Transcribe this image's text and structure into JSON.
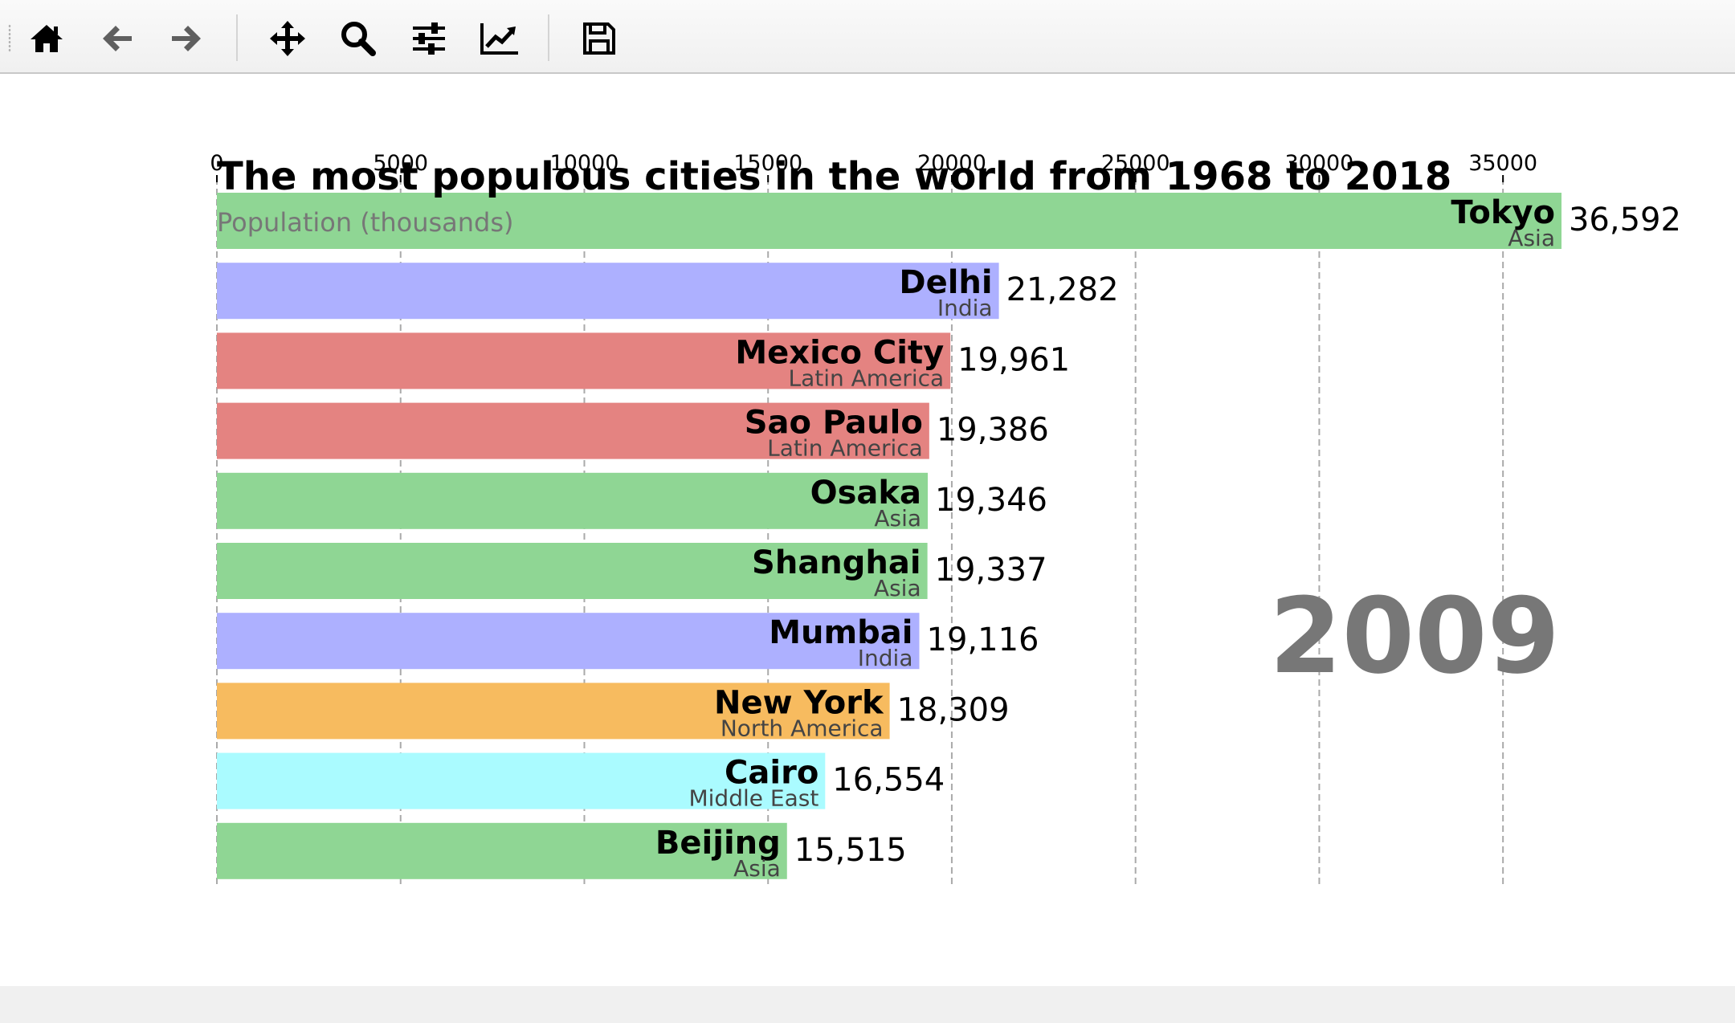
{
  "toolbar": {
    "buttons": [
      {
        "id": "home",
        "icon": "home-icon"
      },
      {
        "id": "back",
        "icon": "arrow-left-icon"
      },
      {
        "id": "forward",
        "icon": "arrow-right-icon"
      },
      {
        "id": "pan",
        "icon": "move-icon"
      },
      {
        "id": "zoom",
        "icon": "search-icon"
      },
      {
        "id": "configure",
        "icon": "sliders-icon"
      },
      {
        "id": "edit-axis",
        "icon": "chart-line-icon"
      },
      {
        "id": "save",
        "icon": "save-icon"
      }
    ]
  },
  "chart_data": {
    "type": "bar",
    "orientation": "horizontal",
    "title": "The most populous cities in the world from 1968 to 2018",
    "xlabel": "Population (thousands)",
    "xlim": [
      0,
      40000
    ],
    "xticks": [
      0,
      5000,
      10000,
      15000,
      20000,
      25000,
      30000,
      35000
    ],
    "xtick_labels": [
      "0",
      "5000",
      "10000",
      "15000",
      "20000",
      "25000",
      "30000",
      "35000"
    ],
    "grid": "vertical dashed",
    "year_label": "2009",
    "bars": [
      {
        "name": "Tokyo",
        "group": "Asia",
        "value": 36592,
        "value_label": "36,592",
        "color": "#8fd694"
      },
      {
        "name": "Delhi",
        "group": "India",
        "value": 21282,
        "value_label": "21,282",
        "color": "#adb0ff"
      },
      {
        "name": "Mexico City",
        "group": "Latin America",
        "value": 19961,
        "value_label": "19,961",
        "color": "#e48381"
      },
      {
        "name": "Sao Paulo",
        "group": "Latin America",
        "value": 19386,
        "value_label": "19,386",
        "color": "#e48381"
      },
      {
        "name": "Osaka",
        "group": "Asia",
        "value": 19346,
        "value_label": "19,346",
        "color": "#8fd694"
      },
      {
        "name": "Shanghai",
        "group": "Asia",
        "value": 19337,
        "value_label": "19,337",
        "color": "#8fd694"
      },
      {
        "name": "Mumbai",
        "group": "India",
        "value": 19116,
        "value_label": "19,116",
        "color": "#adb0ff"
      },
      {
        "name": "New York",
        "group": "North America",
        "value": 18309,
        "value_label": "18,309",
        "color": "#f7bb5f"
      },
      {
        "name": "Cairo",
        "group": "Middle East",
        "value": 16554,
        "value_label": "16,554",
        "color": "#aafbff"
      },
      {
        "name": "Beijing",
        "group": "Asia",
        "value": 15515,
        "value_label": "15,515",
        "color": "#8fd694"
      }
    ]
  }
}
